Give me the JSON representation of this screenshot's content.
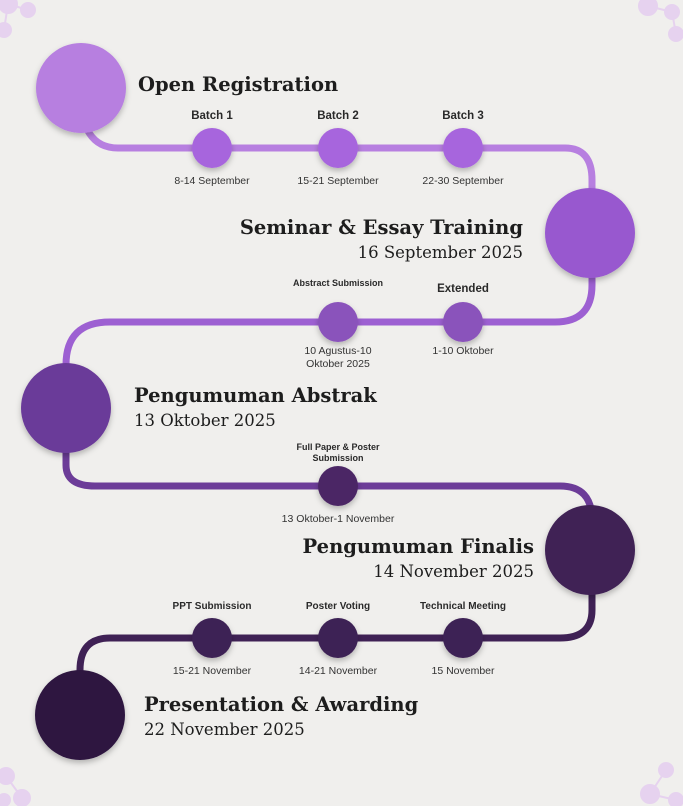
{
  "colors": {
    "background": "#f0efed",
    "stage1": "#b77fe0",
    "stage2": "#9858cf",
    "stage3": "#6b3b99",
    "stage4": "#3f2155",
    "stage5": "#2d1740",
    "decoration": "#d9bfe8"
  },
  "phases": [
    {
      "title": "Open Registration",
      "date": ""
    },
    {
      "title": "Seminar & Essay Training",
      "date": "16 September 2025"
    },
    {
      "title": "Pengumuman Abstrak",
      "date": "13 Oktober 2025"
    },
    {
      "title": "Pengumuman Finalis",
      "date": "14 November 2025"
    },
    {
      "title": "Presentation & Awarding",
      "date": "22 November 2025"
    }
  ],
  "milestones": {
    "registration": [
      {
        "title": "Batch 1",
        "date": "8-14 September"
      },
      {
        "title": "Batch 2",
        "date": "15-21 September"
      },
      {
        "title": "Batch 3",
        "date": "22-30 September"
      }
    ],
    "abstract": [
      {
        "title": "Abstract Submission",
        "date": "10 Agustus-10 Oktober 2025"
      },
      {
        "title": "Extended",
        "date": "1-10 Oktober"
      }
    ],
    "fullpaper": [
      {
        "title": "Full Paper & Poster Submission",
        "date": "13 Oktober-1 November"
      }
    ],
    "final": [
      {
        "title": "PPT Submission",
        "date": "15-21 November"
      },
      {
        "title": "Poster Voting",
        "date": "14-21 November"
      },
      {
        "title": "Technical Meeting",
        "date": "15 November"
      }
    ]
  }
}
